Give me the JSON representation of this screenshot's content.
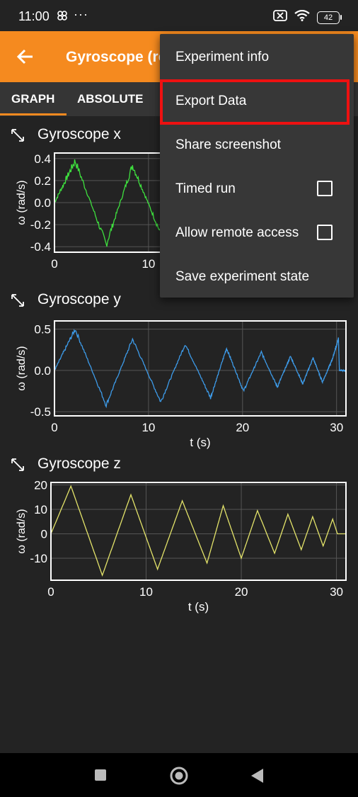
{
  "status": {
    "time": "11:00",
    "dots": "···",
    "battery": "42"
  },
  "toolbar": {
    "title": "Gyroscope (rotation rate)"
  },
  "tabs": [
    {
      "label": "GRAPH"
    },
    {
      "label": "ABSOLUTE"
    }
  ],
  "menu": {
    "items": [
      {
        "label": "Experiment info"
      },
      {
        "label": "Export Data"
      },
      {
        "label": "Share screenshot"
      },
      {
        "label": "Timed run"
      },
      {
        "label": "Allow remote access"
      },
      {
        "label": "Save experiment state"
      }
    ]
  },
  "colors": {
    "accent": "#f58a1f",
    "x_series": "#3ee03e",
    "y_series": "#3d9be9",
    "z_series": "#e4e46a",
    "highlight": "#ee1111"
  },
  "chart_data": [
    {
      "type": "line",
      "title": "Gyroscope x",
      "xlabel": "",
      "ylabel": "ω (rad/s)",
      "xlim": [
        0,
        31
      ],
      "ylim": [
        -0.45,
        0.45
      ],
      "xticks": [
        "0",
        "10"
      ],
      "yticks": [
        "0.4",
        "0.2",
        "0.0",
        "-0.2",
        "-0.4"
      ],
      "series": [
        {
          "x": [
            0,
            2.2,
            5.5,
            8.3,
            11.3
          ],
          "values": [
            0.0,
            0.38,
            -0.38,
            0.34,
            -0.28
          ]
        }
      ]
    },
    {
      "type": "line",
      "title": "Gyroscope y",
      "xlabel": "t (s)",
      "ylabel": "ω (rad/s)",
      "xlim": [
        0,
        31
      ],
      "ylim": [
        -0.55,
        0.6
      ],
      "xticks": [
        "0",
        "10",
        "20",
        "30"
      ],
      "yticks": [
        "0.5",
        "0.0",
        "-0.5"
      ],
      "series": [
        {
          "x": [
            0,
            2.2,
            5.5,
            8.3,
            11.3,
            13.9,
            16.6,
            18.3,
            20.1,
            22.0,
            23.7,
            25.1,
            26.4,
            27.5,
            28.5,
            29.5,
            30.2,
            30.3,
            30.5,
            31
          ],
          "values": [
            0.0,
            0.5,
            -0.42,
            0.38,
            -0.38,
            0.32,
            -0.33,
            0.27,
            -0.25,
            0.22,
            -0.2,
            0.17,
            -0.16,
            0.15,
            -0.14,
            0.12,
            0.38,
            0.0,
            0.0,
            0.0
          ]
        }
      ]
    },
    {
      "type": "line",
      "title": "Gyroscope z",
      "xlabel": "t (s)",
      "ylabel": "ω (rad/s)",
      "xlim": [
        0,
        31
      ],
      "ylim": [
        -19,
        21
      ],
      "xticks": [
        "0",
        "10",
        "20",
        "30"
      ],
      "yticks": [
        "20",
        "10",
        "0",
        "-10"
      ],
      "series": [
        {
          "x": [
            0,
            2.1,
            5.4,
            8.4,
            11.2,
            13.8,
            16.4,
            18.1,
            20.0,
            21.7,
            23.5,
            24.9,
            26.3,
            27.5,
            28.6,
            29.6,
            30.1,
            30.4,
            31
          ],
          "values": [
            0,
            19.5,
            -17,
            16,
            -14.5,
            13.5,
            -12,
            11.5,
            -10,
            9.5,
            -8,
            8,
            -6.5,
            7,
            -5,
            6,
            0,
            0,
            0
          ]
        }
      ]
    }
  ]
}
